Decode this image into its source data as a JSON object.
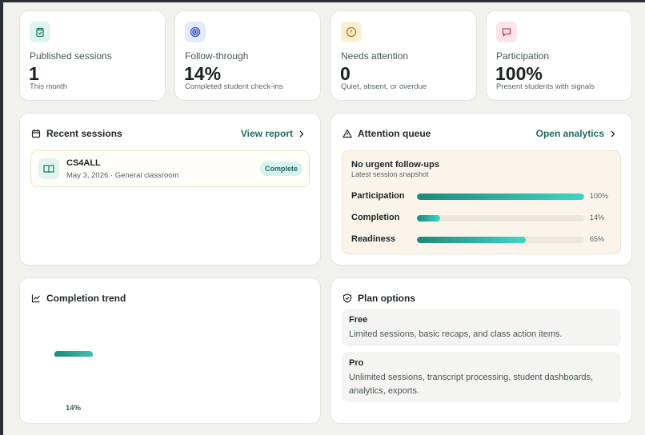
{
  "stats": [
    {
      "title": "Published sessions",
      "value": "1",
      "caption": "This month"
    },
    {
      "title": "Follow-through",
      "value": "14%",
      "caption": "Completed student check-ins"
    },
    {
      "title": "Needs attention",
      "value": "0",
      "caption": "Quiet, absent, or overdue"
    },
    {
      "title": "Participation",
      "value": "100%",
      "caption": "Present students with signals"
    }
  ],
  "recent_sessions": {
    "title": "Recent sessions",
    "link": "View report",
    "items": [
      {
        "name": "CS4ALL",
        "meta": "May 3, 2026 · General classroom",
        "status": "Complete"
      }
    ]
  },
  "attention_queue": {
    "title": "Attention queue",
    "link": "Open analytics",
    "heading": "No urgent follow-ups",
    "subheading": "Latest session snapshot",
    "metrics": [
      {
        "name": "Participation",
        "value": 100,
        "value_label": "100%"
      },
      {
        "name": "Completion",
        "value": 14,
        "value_label": "14%"
      },
      {
        "name": "Readiness",
        "value": 65,
        "value_label": "65%"
      }
    ]
  },
  "completion_trend": {
    "title": "Completion trend",
    "bars": [
      {
        "value": 14,
        "value_label": "14%"
      }
    ]
  },
  "plan_options": {
    "title": "Plan options",
    "plans": [
      {
        "name": "Free",
        "description": "Limited sessions, basic recaps, and class action items."
      },
      {
        "name": "Pro",
        "description": "Unlimited sessions, transcript processing, student dashboards, analytics, exports."
      }
    ]
  }
}
